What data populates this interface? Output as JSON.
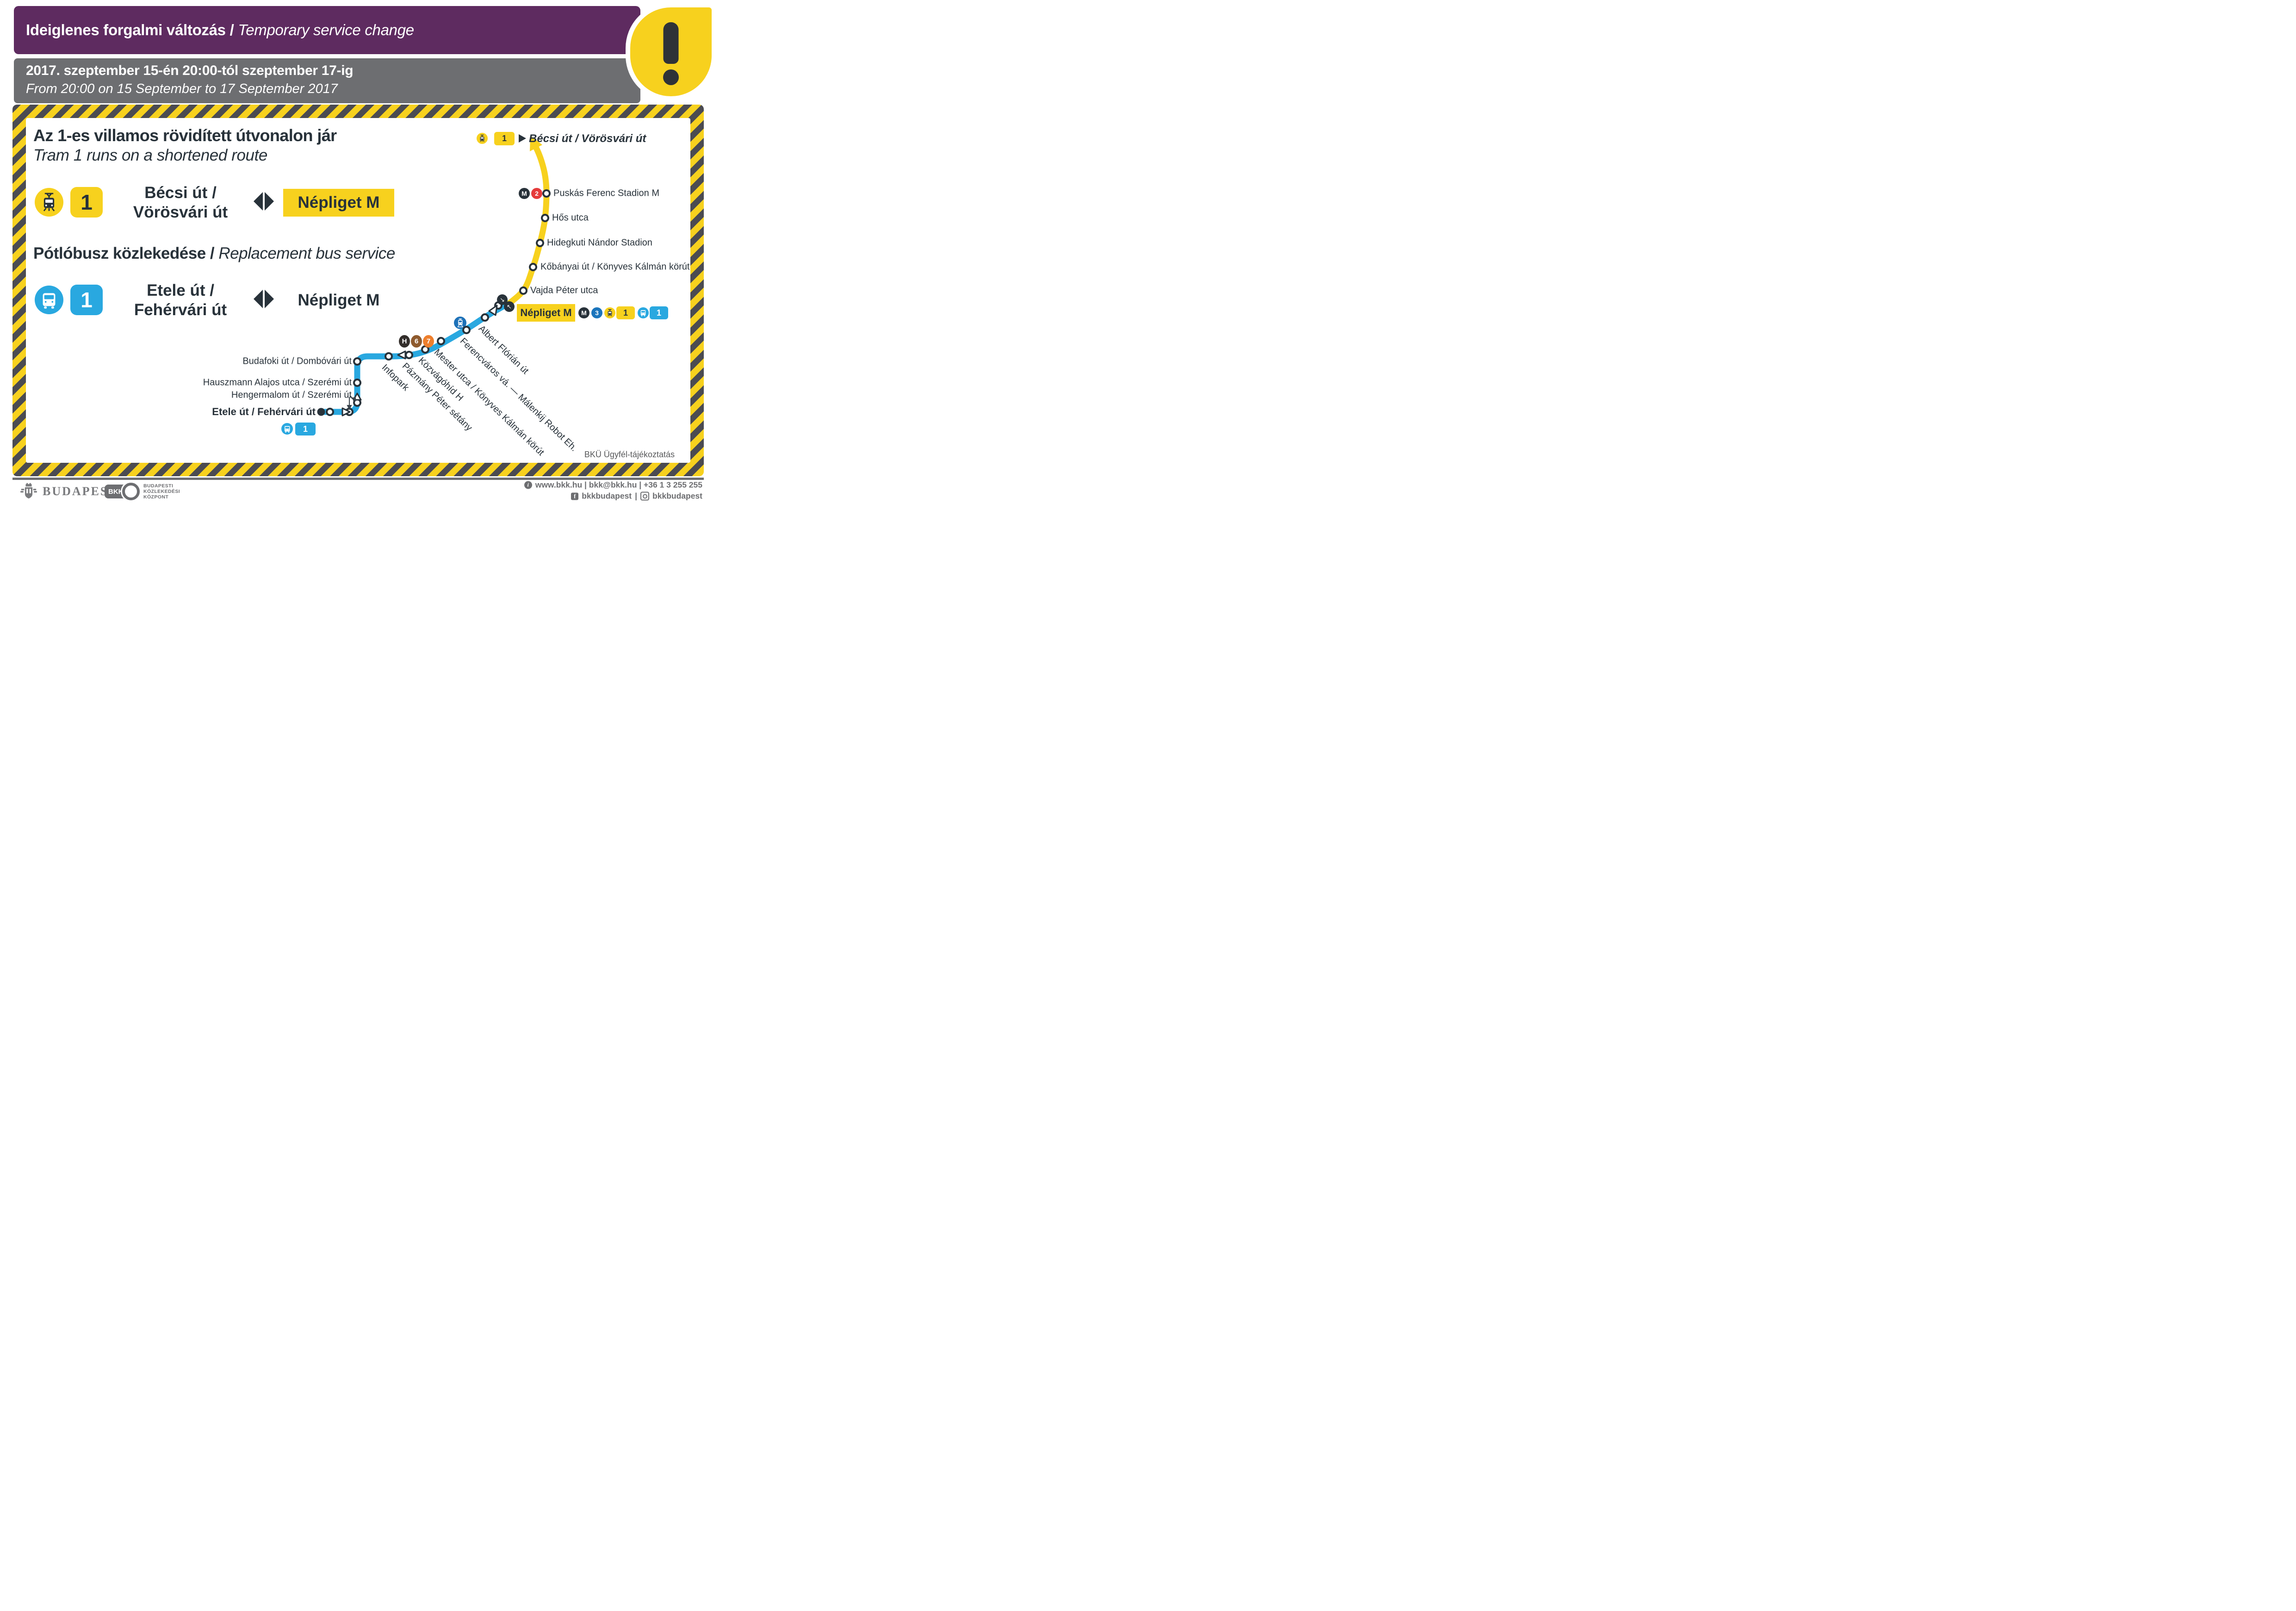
{
  "colors": {
    "purple": "#5e2b60",
    "gray_bar": "#6d6e71",
    "hazard_yellow": "#f7d11e",
    "hazard_dark": "#4b4b51",
    "text_dark": "#28323a",
    "bkk_blue": "#29a8e0",
    "metro_m2_red": "#e53a3a",
    "metro_m3_blue": "#1b75bc",
    "rail_blue": "#1d71b8",
    "h6_brown": "#8e5a2d",
    "h7_orange": "#ee7f2d",
    "h_dark": "#332e2b",
    "footer_gray": "#6d6e71"
  },
  "header": {
    "title_hu": "Ideiglenes forgalmi változás",
    "title_separator": "/",
    "title_en": "Temporary service change",
    "date_hu": "2017. szeptember 15-én 20:00-tól szeptember 17-ig",
    "date_en": "From 20:00 on 15 September to 17 September 2017",
    "warning_mark": "!"
  },
  "tram_section": {
    "heading_hu": "Az 1-es villamos rövidített útvonalon jár",
    "heading_en": "Tram 1 runs on a shortened route",
    "line_number": "1",
    "terminus_line1": "Bécsi út /",
    "terminus_line2": "Vörösvári út",
    "destination": "Népliget M"
  },
  "bus_section": {
    "heading_hu": "Pótlóbusz közlekedése",
    "heading_separator": "/",
    "heading_en": "Replacement bus service",
    "line_number": "1",
    "terminus_line1": "Etele út /",
    "terminus_line2": "Fehérvári út",
    "destination": "Népliget M"
  },
  "map": {
    "legend": {
      "tram_line": "1",
      "destination": "Bécsi út / Vörösvári út"
    },
    "puskas_badges": {
      "metro": "M",
      "line": "2"
    },
    "yellow_stations": [
      "Puskás Ferenc Stadion M",
      "Hős utca",
      "Hidegkuti Nándor Stadion",
      "Kőbányai út / Könyves Kálmán körút",
      "Vajda Péter utca"
    ],
    "nepliget": {
      "name": "Népliget M",
      "metro": "M",
      "metro_line": "3",
      "tram_line": "1",
      "bus_line": "1"
    },
    "h_badges": [
      "H",
      "6",
      "7"
    ],
    "left_stations": [
      "Budafoki út / Dombóvári út",
      "Hauszmann Alajos utca / Szerémi út",
      "Hengermalom út / Szerémi út"
    ],
    "terminal_station": "Etele út / Fehérvári út",
    "terminal_bus_line": "1",
    "diagonal_stations": [
      "Infopark",
      "Pázmány Péter sétány",
      "Közvágóhíd H",
      "Mester utca / Könyves Kálmán körút",
      "Ferencváros vá. — Málenkij Robot Eh.",
      "Albert Flórián út"
    ],
    "direction_arrows": [
      "↘",
      "↖"
    ],
    "note": "BKÜ Ügyfél-tájékoztatás"
  },
  "footer": {
    "city_logo_text": "BUDAPEST",
    "bkk_logo_text": "BKK",
    "bkk_name_line1": "BUDAPESTI",
    "bkk_name_line2": "KÖZLEKEDÉSI",
    "bkk_name_line3": "KÖZPONT",
    "contact_line1": "www.bkk.hu | bkk@bkk.hu | +36 1 3 255 255",
    "social_facebook": "bkkbudapest",
    "social_separator": "|",
    "social_instagram": "bkkbudapest"
  }
}
